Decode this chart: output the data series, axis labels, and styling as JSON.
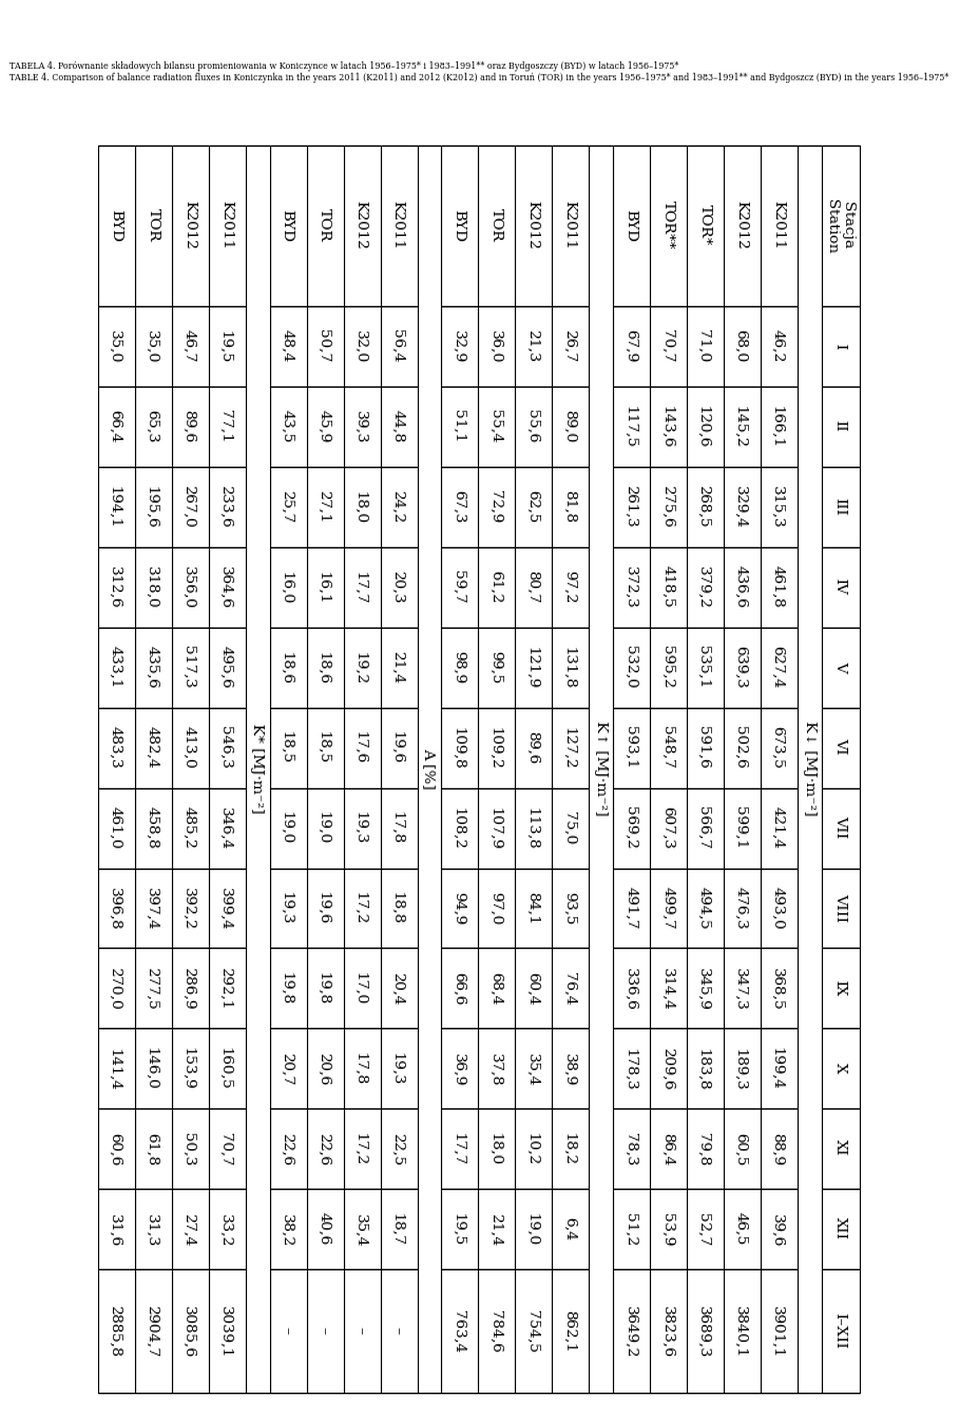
{
  "title_polish": "TABELA 4. Porównanie składowych bilansu promieniowania w Koniczynce w latach 1956–1975* i 1983–1991** oraz Bydgoszczy (BYD) w latach 1956–1975*",
  "title_english": "TABLE 4. Comparison of balance radiation fluxes in Koniczynka in the years 2011 (K2011) and 2012 (K2012) and in Toruń (TOR) in the years 1956–1975* and 1983–1991** and Bydgoszcz (BYD) in the years 1956–1975*",
  "months": [
    "I",
    "II",
    "III",
    "IV",
    "V",
    "VI",
    "VII",
    "VIII",
    "IX",
    "X",
    "XI",
    "XII",
    "I–XII"
  ],
  "sections": [
    {
      "label": "K↓ [MJ·m⁻²]",
      "rows": [
        [
          "K2011",
          "46,2",
          "166,1",
          "315,3",
          "461,8",
          "627,4",
          "673,5",
          "421,4",
          "493,0",
          "368,5",
          "199,4",
          "88,9",
          "39,6",
          "3901,1"
        ],
        [
          "K2012",
          "68,0",
          "145,2",
          "329,4",
          "436,6",
          "639,3",
          "502,6",
          "599,1",
          "476,3",
          "347,3",
          "189,3",
          "60,5",
          "46,5",
          "3840,1"
        ],
        [
          "TOR*",
          "71,0",
          "120,6",
          "268,5",
          "379,2",
          "535,1",
          "591,6",
          "566,7",
          "494,5",
          "345,9",
          "183,8",
          "79,8",
          "52,7",
          "3689,3"
        ],
        [
          "TOR**",
          "70,7",
          "143,6",
          "275,6",
          "418,5",
          "595,2",
          "548,7",
          "607,3",
          "499,7",
          "314,4",
          "209,6",
          "86,4",
          "53,9",
          "3823,6"
        ],
        [
          "BYD",
          "67,9",
          "117,5",
          "261,3",
          "372,3",
          "532,0",
          "593,1",
          "569,2",
          "491,7",
          "336,6",
          "178,3",
          "78,3",
          "51,2",
          "3649,2"
        ]
      ]
    },
    {
      "label": "K↑ [MJ·m⁻²]",
      "rows": [
        [
          "K2011",
          "26,7",
          "89,0",
          "81,8",
          "97,2",
          "131,8",
          "127,2",
          "75,0",
          "93,5",
          "76,4",
          "38,9",
          "18,2",
          "6,4",
          "862,1"
        ],
        [
          "K2012",
          "21,3",
          "55,6",
          "62,5",
          "80,7",
          "121,9",
          "89,6",
          "113,8",
          "84,1",
          "60,4",
          "35,4",
          "10,2",
          "19,0",
          "754,5"
        ],
        [
          "TOR",
          "36,0",
          "55,4",
          "72,9",
          "61,2",
          "99,5",
          "109,2",
          "107,9",
          "97,0",
          "68,4",
          "37,8",
          "18,0",
          "21,4",
          "784,6"
        ],
        [
          "BYD",
          "32,9",
          "51,1",
          "67,3",
          "59,7",
          "98,9",
          "109,8",
          "108,2",
          "94,9",
          "66,6",
          "36,9",
          "17,7",
          "19,5",
          "763,4"
        ]
      ]
    },
    {
      "label": "A [%]",
      "rows": [
        [
          "K2011",
          "56,4",
          "44,8",
          "24,2",
          "20,3",
          "21,4",
          "19,6",
          "17,8",
          "18,8",
          "20,4",
          "19,3",
          "22,5",
          "18,7",
          "–"
        ],
        [
          "K2012",
          "32,0",
          "39,3",
          "18,0",
          "17,7",
          "19,2",
          "17,6",
          "19,3",
          "17,2",
          "17,0",
          "17,8",
          "17,2",
          "35,4",
          "–"
        ],
        [
          "TOR",
          "50,7",
          "45,9",
          "27,1",
          "16,1",
          "18,6",
          "18,5",
          "19,0",
          "19,6",
          "19,8",
          "20,6",
          "22,6",
          "40,6",
          "–"
        ],
        [
          "BYD",
          "48,4",
          "43,5",
          "25,7",
          "16,0",
          "18,6",
          "18,5",
          "19,0",
          "19,3",
          "19,8",
          "20,7",
          "22,6",
          "38,2",
          "–"
        ]
      ]
    },
    {
      "label": "K* [MJ·m⁻²]",
      "rows": [
        [
          "K2011",
          "19,5",
          "77,1",
          "233,6",
          "364,6",
          "495,6",
          "546,3",
          "346,4",
          "399,4",
          "292,1",
          "160,5",
          "70,7",
          "33,2",
          "3039,1"
        ],
        [
          "K2012",
          "46,7",
          "89,6",
          "267,0",
          "356,0",
          "517,3",
          "413,0",
          "485,2",
          "392,2",
          "286,9",
          "153,9",
          "50,3",
          "27,4",
          "3085,6"
        ],
        [
          "TOR",
          "35,0",
          "65,3",
          "195,6",
          "318,0",
          "435,6",
          "482,4",
          "458,8",
          "397,4",
          "277,5",
          "146,0",
          "61,8",
          "31,3",
          "2904,7"
        ],
        [
          "BYD",
          "35,0",
          "66,4",
          "194,1",
          "312,6",
          "433,1",
          "483,3",
          "461,0",
          "396,8",
          "270,0",
          "141,4",
          "60,6",
          "31,6",
          "2885,8"
        ]
      ]
    }
  ],
  "fig_width": 9.6,
  "fig_height": 14.17,
  "dpi": 100
}
